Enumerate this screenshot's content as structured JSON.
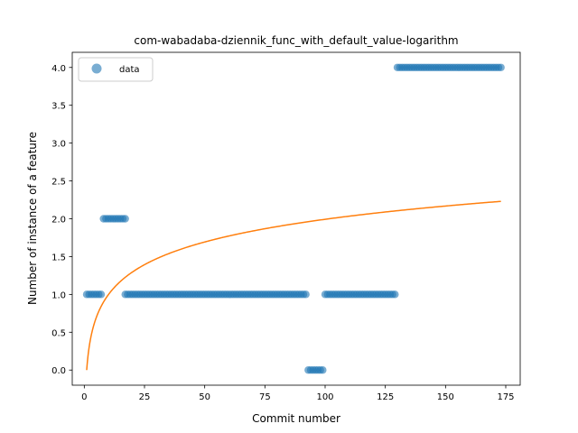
{
  "chart_data": {
    "type": "scatter",
    "title": "com-wabadaba-dziennik_func_with_default_value-logarithm",
    "xlabel": "Commit number",
    "ylabel": "Number of instance of a feature",
    "xlim": [
      -5,
      181
    ],
    "ylim": [
      -0.2,
      4.2
    ],
    "xticks": [
      0,
      25,
      50,
      75,
      100,
      125,
      150,
      175
    ],
    "yticks": [
      0.0,
      0.5,
      1.0,
      1.5,
      2.0,
      2.5,
      3.0,
      3.5,
      4.0
    ],
    "xtick_labels": [
      "0",
      "25",
      "50",
      "75",
      "100",
      "125",
      "150",
      "175"
    ],
    "ytick_labels": [
      "0.0",
      "0.5",
      "1.0",
      "1.5",
      "2.0",
      "2.5",
      "3.0",
      "3.5",
      "4.0"
    ],
    "grid": false,
    "legend_position": "top-left",
    "series": [
      {
        "name": "data",
        "kind": "scatter",
        "color": "#1f77b4",
        "segments": [
          {
            "x_start": 1,
            "x_end": 7,
            "y": 1
          },
          {
            "x_start": 8,
            "x_end": 17,
            "y": 2
          },
          {
            "x_start": 17,
            "x_end": 92,
            "y": 1
          },
          {
            "x_start": 93,
            "x_end": 99,
            "y": 0
          },
          {
            "x_start": 100,
            "x_end": 129,
            "y": 1
          },
          {
            "x_start": 130,
            "x_end": 173,
            "y": 4
          }
        ]
      },
      {
        "kind": "line",
        "color": "#ff7f0e",
        "model": "logarithmic fit",
        "x_range": [
          1,
          173
        ],
        "y_at_start": 0.0,
        "y_at_end": 2.23
      }
    ]
  }
}
